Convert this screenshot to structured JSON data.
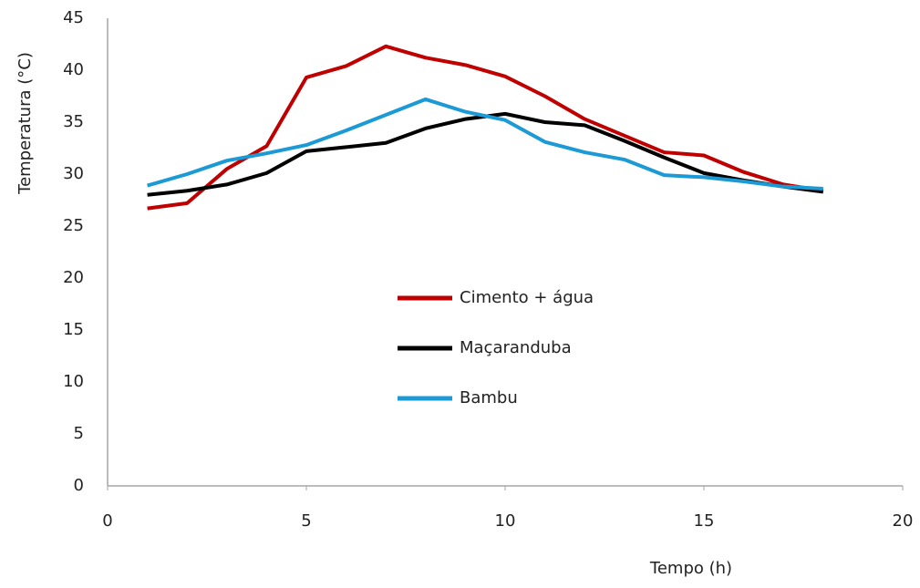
{
  "chart_data": {
    "type": "line",
    "x_label": "Tempo  (h)",
    "y_label": "Temperatura (°C)",
    "x": [
      1,
      2,
      3,
      4,
      5,
      6,
      7,
      8,
      9,
      10,
      11,
      12,
      13,
      14,
      15,
      16,
      17,
      18
    ],
    "series": [
      {
        "name": "Cimento + água",
        "color": "#c00000",
        "values": [
          26.7,
          27.2,
          30.5,
          32.7,
          39.3,
          40.4,
          42.3,
          41.2,
          40.5,
          39.4,
          37.5,
          35.3,
          33.7,
          32.1,
          31.8,
          30.2,
          29.0,
          28.4
        ]
      },
      {
        "name": "Maçaranduba",
        "color": "#000000",
        "values": [
          28.0,
          28.4,
          29.0,
          30.1,
          32.2,
          32.6,
          33.0,
          34.4,
          35.3,
          35.8,
          35.0,
          34.7,
          33.2,
          31.6,
          30.1,
          29.4,
          28.8,
          28.3
        ]
      },
      {
        "name": "Bambu",
        "color": "#1b9ad6",
        "values": [
          28.9,
          30.0,
          31.3,
          32.0,
          32.8,
          34.2,
          35.7,
          37.2,
          36.0,
          35.2,
          33.1,
          32.1,
          31.4,
          29.9,
          29.7,
          29.3,
          28.8,
          28.6
        ]
      }
    ],
    "xlim": [
      0,
      20
    ],
    "xticks": [
      0,
      5,
      10,
      15,
      20
    ],
    "ylim": [
      0,
      45
    ],
    "yticks": [
      0,
      5,
      10,
      15,
      20,
      25,
      30,
      35,
      40,
      45
    ],
    "grid": false
  }
}
